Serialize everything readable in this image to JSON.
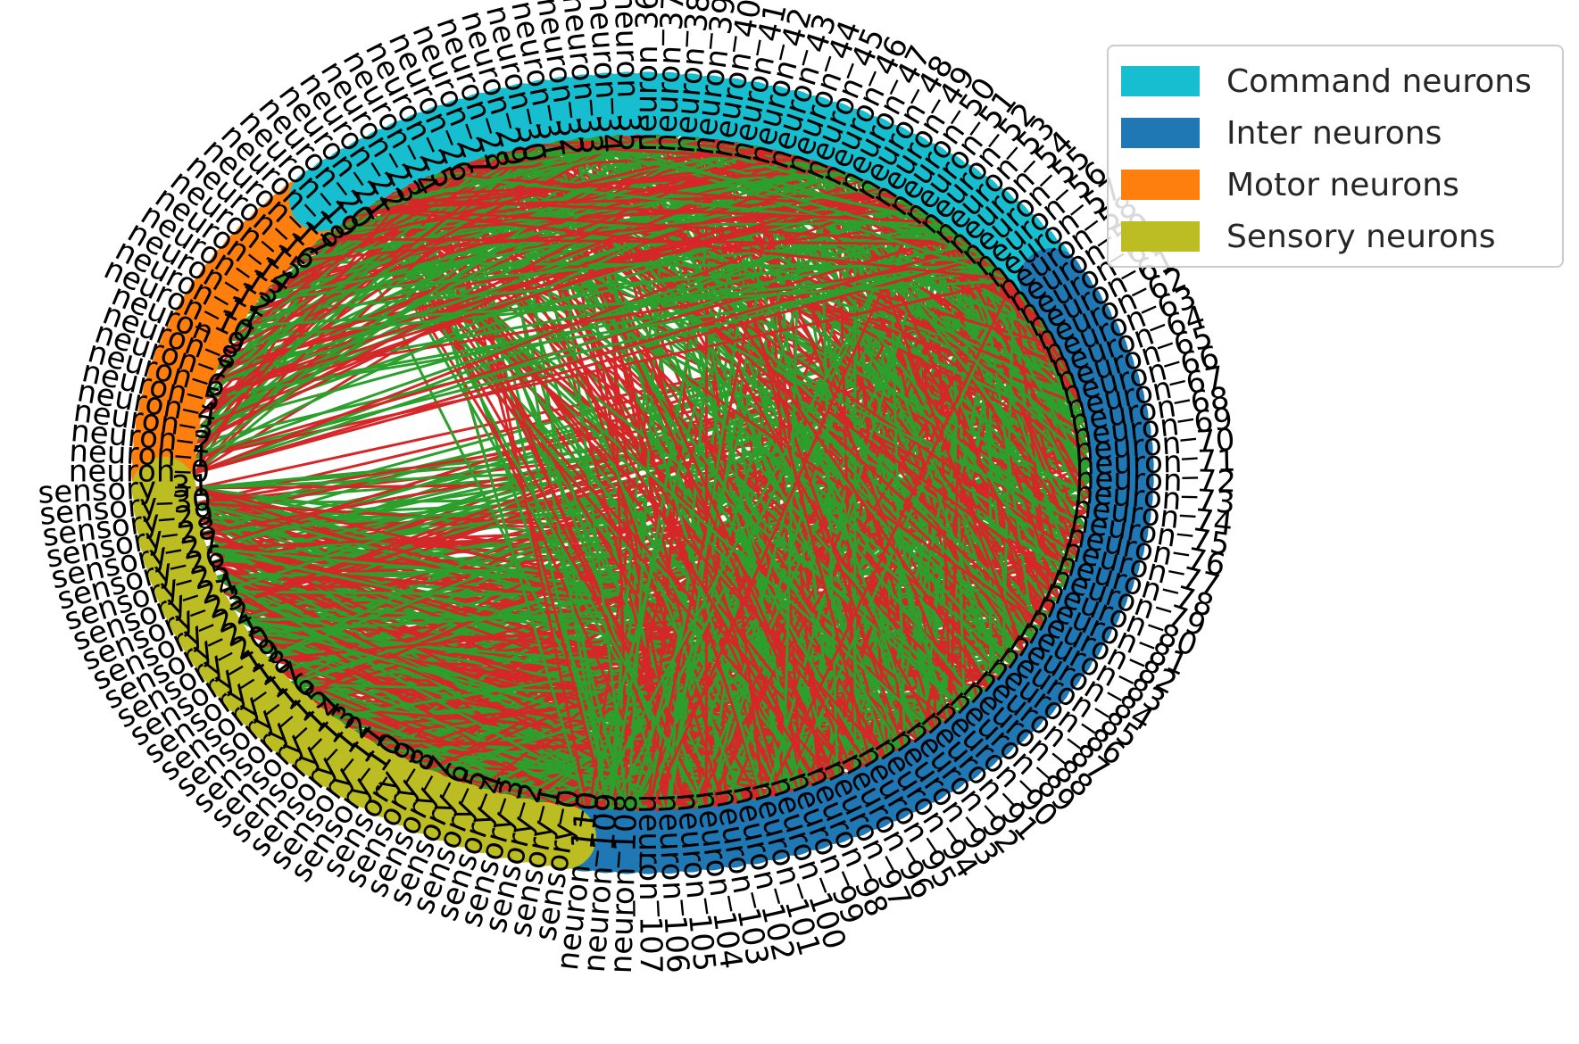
{
  "colors": {
    "excitatory_edge": "#2ca02c",
    "inhibitory_edge": "#d62728",
    "label_text": "#000000"
  },
  "legend": {
    "items": [
      {
        "label": "Command neurons",
        "color": "#17becf"
      },
      {
        "label": "Inter neurons",
        "color": "#1f77b4"
      },
      {
        "label": "Motor neurons",
        "color": "#ff7f0e"
      },
      {
        "label": "Sensory neurons",
        "color": "#bcbd22"
      }
    ]
  },
  "groups": {
    "sensory": {
      "prefix": "sensory_",
      "count": 32,
      "color": "#bcbd22"
    },
    "motor": {
      "prefix": "neuron_",
      "start": 0,
      "count": 19,
      "color": "#ff7f0e"
    },
    "command": {
      "prefix": "neuron_",
      "start": 19,
      "count": 40,
      "color": "#17becf"
    },
    "inter": {
      "prefix": "neuron_",
      "start": 59,
      "count": 52,
      "color": "#1f77b4"
    }
  }
}
